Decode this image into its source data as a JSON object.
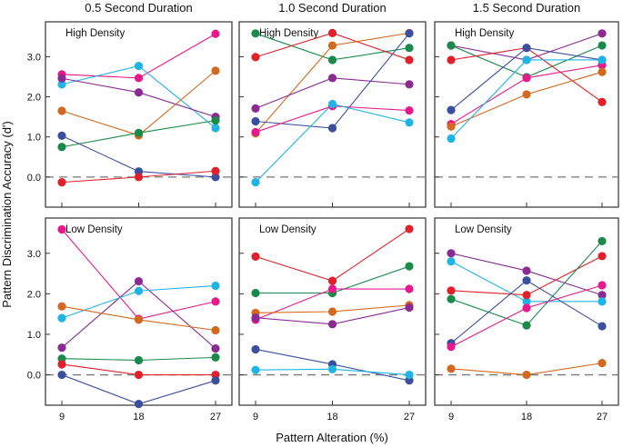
{
  "chart_data": {
    "type": "line",
    "xlabel": "Pattern Alteration (%)",
    "ylabel": "Pattern Discrimination Accuracy (d')",
    "x": [
      9,
      18,
      27
    ],
    "x_tick_labels": [
      "9",
      "18",
      "27"
    ],
    "y_tick_labels": [
      "0.0",
      "1.0",
      "2.0",
      "3.0"
    ],
    "y_ticks": [
      0,
      1,
      2,
      3
    ],
    "ylim": [
      -0.75,
      3.87
    ],
    "reference_line": {
      "y": 0,
      "style": "dashed"
    },
    "grid": false,
    "columns": [
      "0.5 Second Duration",
      "1.0 Second Duration",
      "1.5 Second Duration"
    ],
    "rows": [
      "High Density",
      "Low Density"
    ],
    "panels": [
      {
        "column": "0.5 Second Duration",
        "label": "High Density",
        "series": [
          {
            "color": "#e8198c",
            "values": [
              2.56,
              2.47,
              3.57
            ]
          },
          {
            "color": "#1eb4e6",
            "values": [
              2.31,
              2.77,
              1.22
            ]
          },
          {
            "color": "#8b2a93",
            "values": [
              2.46,
              2.11,
              1.5
            ]
          },
          {
            "color": "#d2691e",
            "values": [
              1.65,
              1.04,
              2.65
            ]
          },
          {
            "color": "#1a8a4a",
            "values": [
              0.75,
              1.1,
              1.41
            ]
          },
          {
            "color": "#3a4fa0",
            "values": [
              1.03,
              0.14,
              0.0
            ]
          },
          {
            "color": "#e0202a",
            "values": [
              -0.13,
              0.0,
              0.15
            ]
          }
        ]
      },
      {
        "column": "1.0 Second Duration",
        "label": "High Density",
        "series": [
          {
            "color": "#1a8a4a",
            "values": [
              3.58,
              2.92,
              3.22
            ]
          },
          {
            "color": "#e0202a",
            "values": [
              2.99,
              3.59,
              2.92
            ]
          },
          {
            "color": "#d2691e",
            "values": [
              1.09,
              3.28,
              3.59
            ]
          },
          {
            "color": "#8b2a93",
            "values": [
              1.71,
              2.47,
              2.31
            ]
          },
          {
            "color": "#3a4fa0",
            "values": [
              1.39,
              1.22,
              3.58
            ]
          },
          {
            "color": "#e8198c",
            "values": [
              1.12,
              1.77,
              1.66
            ]
          },
          {
            "color": "#1eb4e6",
            "values": [
              -0.13,
              1.82,
              1.36
            ]
          }
        ]
      },
      {
        "column": "1.5 Second Duration",
        "label": "High Density",
        "series": [
          {
            "color": "#8b2a93",
            "values": [
              3.28,
              2.92,
              3.58
            ]
          },
          {
            "color": "#1a8a4a",
            "values": [
              3.28,
              2.49,
              3.28
            ]
          },
          {
            "color": "#e0202a",
            "values": [
              2.92,
              3.22,
              1.87
            ]
          },
          {
            "color": "#3a4fa0",
            "values": [
              1.67,
              3.22,
              2.92
            ]
          },
          {
            "color": "#e8198c",
            "values": [
              1.32,
              2.47,
              2.79
            ]
          },
          {
            "color": "#d2691e",
            "values": [
              1.26,
              2.06,
              2.62
            ]
          },
          {
            "color": "#1eb4e6",
            "values": [
              0.96,
              2.92,
              2.92
            ]
          }
        ]
      },
      {
        "column": "0.5 Second Duration",
        "label": "Low Density",
        "series": [
          {
            "color": "#e8198c",
            "values": [
              3.59,
              1.38,
              1.81
            ]
          },
          {
            "color": "#8b2a93",
            "values": [
              0.67,
              2.31,
              0.65
            ]
          },
          {
            "color": "#1eb4e6",
            "values": [
              1.4,
              2.07,
              2.2
            ]
          },
          {
            "color": "#d2691e",
            "values": [
              1.69,
              1.36,
              1.1
            ]
          },
          {
            "color": "#1a8a4a",
            "values": [
              0.4,
              0.36,
              0.43
            ]
          },
          {
            "color": "#e0202a",
            "values": [
              0.26,
              0.0,
              0.0
            ]
          },
          {
            "color": "#3a4fa0",
            "values": [
              0.0,
              -0.72,
              -0.14
            ]
          }
        ]
      },
      {
        "column": "1.0 Second Duration",
        "label": "Low Density",
        "series": [
          {
            "color": "#e0202a",
            "values": [
              2.92,
              2.32,
              3.6
            ]
          },
          {
            "color": "#1a8a4a",
            "values": [
              2.02,
              2.02,
              2.68
            ]
          },
          {
            "color": "#e8198c",
            "values": [
              1.36,
              2.12,
              2.12
            ]
          },
          {
            "color": "#d2691e",
            "values": [
              1.53,
              1.56,
              1.72
            ]
          },
          {
            "color": "#8b2a93",
            "values": [
              1.41,
              1.25,
              1.66
            ]
          },
          {
            "color": "#3a4fa0",
            "values": [
              0.63,
              0.26,
              -0.14
            ]
          },
          {
            "color": "#1eb4e6",
            "values": [
              0.12,
              0.14,
              0.0
            ]
          }
        ]
      },
      {
        "column": "1.5 Second Duration",
        "label": "Low Density",
        "series": [
          {
            "color": "#8b2a93",
            "values": [
              3.0,
              2.57,
              1.97
            ]
          },
          {
            "color": "#1eb4e6",
            "values": [
              2.8,
              1.81,
              1.81
            ]
          },
          {
            "color": "#e0202a",
            "values": [
              2.08,
              1.97,
              2.93
            ]
          },
          {
            "color": "#1a8a4a",
            "values": [
              1.87,
              1.22,
              3.3
            ]
          },
          {
            "color": "#3a4fa0",
            "values": [
              0.78,
              2.33,
              1.2
            ]
          },
          {
            "color": "#e8198c",
            "values": [
              0.69,
              1.65,
              2.21
            ]
          },
          {
            "color": "#d2691e",
            "values": [
              0.15,
              0.0,
              0.29
            ]
          }
        ]
      }
    ]
  }
}
